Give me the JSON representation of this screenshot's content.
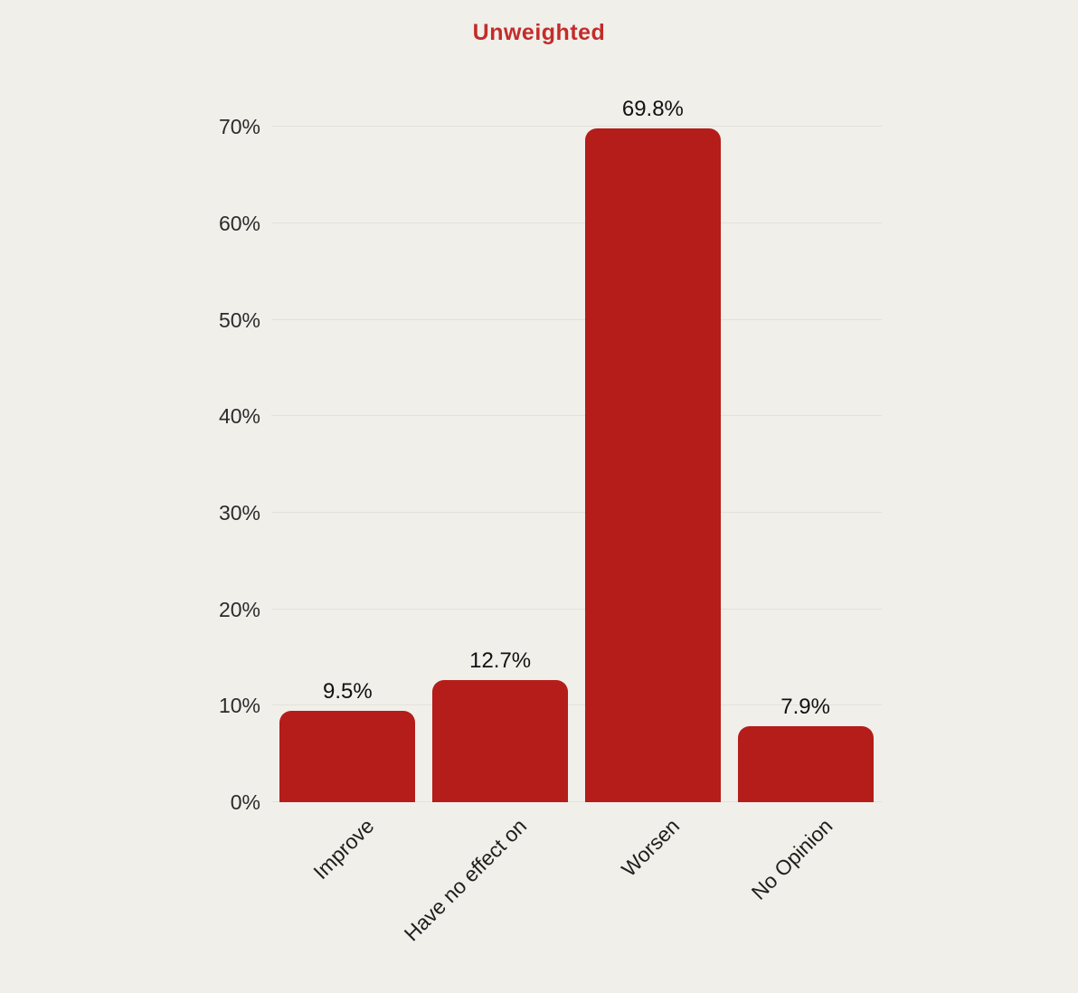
{
  "colors": {
    "background": "#f0efea",
    "bar": "#b41d1a",
    "title": "#c32c2a",
    "gridline": "#e2e1dc",
    "tick_text": "#2b2b2b",
    "value_text": "#111111"
  },
  "chart_data": {
    "type": "bar",
    "title": "Unweighted",
    "categories": [
      "Improve",
      "Have no effect on",
      "Worsen",
      "No Opinion"
    ],
    "values": [
      9.5,
      12.7,
      69.8,
      7.9
    ],
    "value_labels": [
      "9.5%",
      "12.7%",
      "69.8%",
      "7.9%"
    ],
    "y_tick_values": [
      0,
      10,
      20,
      30,
      40,
      50,
      60,
      70
    ],
    "y_tick_labels": [
      "0%",
      "10%",
      "20%",
      "30%",
      "40%",
      "50%",
      "60%",
      "70%"
    ],
    "ylim": [
      0,
      75
    ],
    "xlabel": "",
    "ylabel": "",
    "grid": "horizontal",
    "legend": "none",
    "xtick_rotation_deg": 45
  }
}
